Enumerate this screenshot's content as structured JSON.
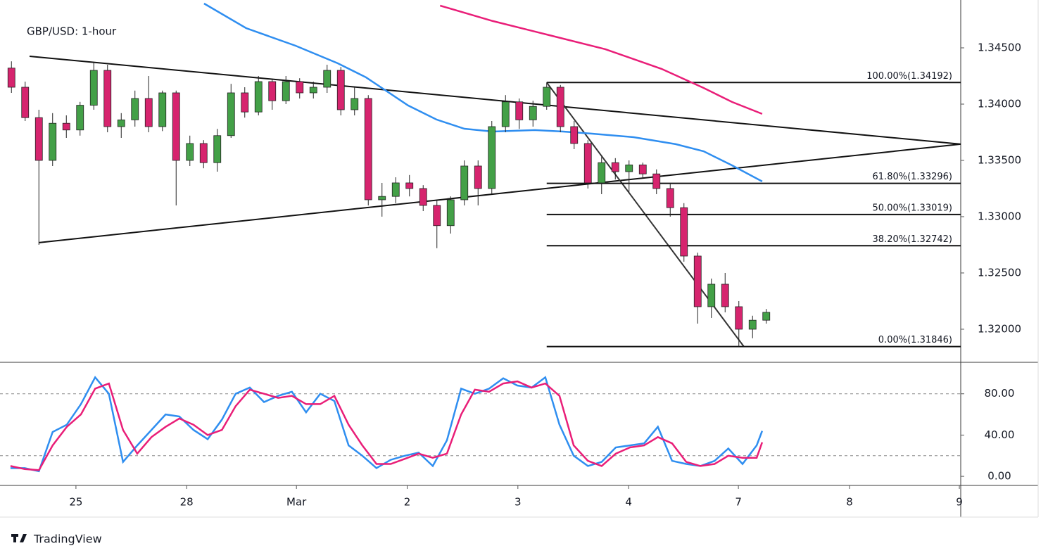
{
  "chart_data": [
    {
      "type": "candlestick",
      "title": "GBP/USD: 1-hour",
      "x": [
        2.5,
        5.5,
        8.5,
        11.5,
        14.5,
        17.5,
        20.5,
        23.5,
        26.5,
        29.5,
        32.5,
        35.5,
        38.5,
        41.5,
        44.5,
        47.5,
        50.5,
        53.5,
        56.5,
        59.5,
        62.5,
        65.5,
        68.5,
        71.5,
        74.5,
        77.5,
        80.5,
        83.5,
        86.5,
        89.5,
        92.5,
        95.5,
        98.5,
        101.5,
        104.5,
        107.5,
        110.5,
        113.5,
        116.5,
        119.5,
        122.5,
        125.5,
        128.5,
        131.5,
        134.5,
        137.5,
        140.5,
        143.5,
        146.5,
        149.5,
        152.5,
        155.5,
        158.5,
        161.5,
        164.5,
        167.5
      ],
      "open": [
        1.3432,
        1.3415,
        1.3388,
        1.335,
        1.3383,
        1.3377,
        1.3399,
        1.343,
        1.338,
        1.3386,
        1.3405,
        1.338,
        1.341,
        1.335,
        1.3365,
        1.3348,
        1.3372,
        1.341,
        1.3393,
        1.342,
        1.3403,
        1.342,
        1.341,
        1.3415,
        1.343,
        1.3395,
        1.3405,
        1.3315,
        1.3318,
        1.333,
        1.3325,
        1.331,
        1.3292,
        1.3315,
        1.3345,
        1.3325,
        1.338,
        1.3402,
        1.3386,
        1.3398,
        1.3415,
        1.338,
        1.3365,
        1.333,
        1.3348,
        1.334,
        1.3346,
        1.3338,
        1.3325,
        1.3308,
        1.3265,
        1.322,
        1.324,
        1.322,
        1.32,
        1.3208
      ],
      "high": [
        1.3438,
        1.342,
        1.3395,
        1.3392,
        1.339,
        1.3402,
        1.3437,
        1.3435,
        1.3392,
        1.3412,
        1.3425,
        1.3412,
        1.3412,
        1.3372,
        1.3368,
        1.3378,
        1.3418,
        1.3415,
        1.3425,
        1.3422,
        1.3425,
        1.3423,
        1.342,
        1.3435,
        1.3433,
        1.3415,
        1.3408,
        1.333,
        1.3335,
        1.3337,
        1.3328,
        1.3315,
        1.3318,
        1.335,
        1.335,
        1.3385,
        1.3408,
        1.3405,
        1.3403,
        1.34192,
        1.3417,
        1.3385,
        1.3368,
        1.3353,
        1.3352,
        1.335,
        1.3348,
        1.3342,
        1.333,
        1.3312,
        1.3268,
        1.3245,
        1.325,
        1.3225,
        1.3212,
        1.3218
      ],
      "low": [
        1.341,
        1.3385,
        1.3275,
        1.3345,
        1.337,
        1.3372,
        1.3395,
        1.3375,
        1.337,
        1.338,
        1.3375,
        1.3376,
        1.331,
        1.3345,
        1.3343,
        1.334,
        1.337,
        1.3388,
        1.339,
        1.3395,
        1.34,
        1.3405,
        1.3405,
        1.341,
        1.339,
        1.339,
        1.331,
        1.33,
        1.3312,
        1.3318,
        1.3305,
        1.3272,
        1.3285,
        1.331,
        1.331,
        1.332,
        1.3375,
        1.3378,
        1.338,
        1.3395,
        1.3375,
        1.336,
        1.3325,
        1.332,
        1.3333,
        1.3322,
        1.3334,
        1.332,
        1.33,
        1.326,
        1.3205,
        1.321,
        1.3215,
        1.31846,
        1.3192,
        1.3205
      ],
      "close": [
        1.3415,
        1.3388,
        1.335,
        1.3383,
        1.3377,
        1.3399,
        1.343,
        1.338,
        1.3386,
        1.3405,
        1.338,
        1.341,
        1.335,
        1.3365,
        1.3348,
        1.3372,
        1.341,
        1.3393,
        1.342,
        1.3403,
        1.342,
        1.341,
        1.3415,
        1.343,
        1.3395,
        1.3405,
        1.3315,
        1.3318,
        1.333,
        1.3325,
        1.331,
        1.3292,
        1.3315,
        1.3345,
        1.3325,
        1.338,
        1.3402,
        1.3386,
        1.3398,
        1.3415,
        1.338,
        1.3365,
        1.333,
        1.3348,
        1.334,
        1.3346,
        1.3338,
        1.3325,
        1.3308,
        1.3265,
        1.322,
        1.324,
        1.322,
        1.32,
        1.3208,
        1.3215
      ],
      "up_color": "#43a047",
      "down_color": "#d6246e",
      "series": [
        {
          "color": "#2f8ef0",
          "x": [
            44.6,
            53.8,
            64.6,
            73.8,
            80,
            89.2,
            95.4,
            101.5,
            107.7,
            116.9,
            123.1,
            129.2,
            138.5,
            147.7,
            153.8,
            160,
            166.6
          ],
          "values": [
            1.34894,
            1.34675,
            1.34519,
            1.34363,
            1.34238,
            1.33988,
            1.33863,
            1.33781,
            1.33756,
            1.33769,
            1.33756,
            1.33738,
            1.33706,
            1.33644,
            1.33581,
            1.33456,
            1.33313
          ]
        },
        {
          "color": "#e91e78",
          "x": [
            96.2,
            107.7,
            120,
            132.3,
            144.6,
            153.8,
            160,
            166.6
          ],
          "values": [
            1.34875,
            1.34738,
            1.34613,
            1.34488,
            1.34313,
            1.34144,
            1.34019,
            1.33913
          ]
        }
      ],
      "trendlines": [
        {
          "color": "#111111",
          "x": [
            6.46,
            210
          ],
          "values": [
            1.34425,
            1.33644
          ]
        },
        {
          "color": "#111111",
          "x": [
            8.5,
            210
          ],
          "values": [
            1.32769,
            1.33644
          ]
        },
        {
          "color": "#333333",
          "x": [
            119.5,
            162.6
          ],
          "values": [
            1.34192,
            1.31846
          ]
        }
      ],
      "fib_x": [
        119.5,
        210
      ],
      "fib_levels": [
        {
          "value": 1.34192,
          "label": "100.00%(1.34192)"
        },
        {
          "value": 1.33296,
          "label": "61.80%(1.33296)"
        },
        {
          "value": 1.33019,
          "label": "50.00%(1.33019)"
        },
        {
          "value": 1.32742,
          "label": "38.20%(1.32742)"
        },
        {
          "value": 1.31846,
          "label": "0.00%(1.31846)"
        }
      ],
      "xlim": [
        0,
        210
      ],
      "ylim": [
        1.31706,
        1.34925
      ],
      "yticks": [
        {
          "value": 1.345,
          "label": "1.34500"
        },
        {
          "value": 1.34,
          "label": "1.34000"
        },
        {
          "value": 1.335,
          "label": "1.33500"
        },
        {
          "value": 1.33,
          "label": "1.33000"
        },
        {
          "value": 1.325,
          "label": "1.32500"
        },
        {
          "value": 1.32,
          "label": "1.32000"
        }
      ],
      "grid": false
    },
    {
      "type": "line",
      "x": [
        2.3,
        5.4,
        8.5,
        11.5,
        14.6,
        17.7,
        20.8,
        23.8,
        26.9,
        30,
        33.1,
        36.2,
        39.2,
        42.3,
        45.4,
        48.5,
        51.5,
        54.6,
        57.7,
        60.8,
        63.8,
        66.9,
        70,
        73.1,
        76.2,
        79.2,
        82.3,
        85.4,
        88.5,
        91.5,
        94.6,
        97.7,
        100.8,
        103.8,
        106.9,
        110,
        113.1,
        116.2,
        119.2,
        122.3,
        125.4,
        128.5,
        131.5,
        134.6,
        137.7,
        140.8,
        143.8,
        146.9,
        150,
        153.1,
        156.2,
        159.2,
        162.3,
        165.4,
        166.6
      ],
      "series": [
        {
          "color": "#2f8ef0",
          "values": [
            8,
            8,
            5,
            43,
            50,
            70,
            96,
            80,
            14,
            30,
            45,
            60,
            58,
            45,
            36,
            55,
            80,
            86,
            72,
            78,
            82,
            62,
            80,
            73,
            30,
            20,
            8,
            16,
            20,
            23,
            10,
            35,
            85,
            80,
            85,
            95,
            88,
            86,
            96,
            50,
            20,
            10,
            14,
            28,
            30,
            32,
            48,
            15,
            12,
            10,
            15,
            27,
            12,
            30,
            44
          ]
        },
        {
          "color": "#e91e78",
          "values": [
            10,
            7,
            6,
            30,
            48,
            60,
            85,
            90,
            45,
            22,
            38,
            48,
            56,
            50,
            40,
            45,
            68,
            84,
            80,
            76,
            78,
            70,
            70,
            78,
            50,
            30,
            12,
            12,
            17,
            22,
            18,
            22,
            60,
            84,
            82,
            90,
            92,
            86,
            90,
            78,
            30,
            15,
            10,
            22,
            28,
            30,
            38,
            32,
            14,
            10,
            12,
            20,
            18,
            18,
            33
          ]
        }
      ],
      "bands": [
        20,
        80
      ],
      "xlim": [
        0,
        210
      ],
      "ylim": [
        -8.8,
        110.5
      ],
      "yticks": [
        {
          "value": 80,
          "label": "80.00"
        },
        {
          "value": 40,
          "label": "40.00"
        },
        {
          "value": 0,
          "label": "0.00"
        }
      ],
      "xticks": [
        {
          "value": 16.6,
          "label": "25"
        },
        {
          "value": 40.8,
          "label": "28"
        },
        {
          "value": 64.8,
          "label": "Mar"
        },
        {
          "value": 89,
          "label": "2"
        },
        {
          "value": 113.2,
          "label": "3"
        },
        {
          "value": 137.4,
          "label": "4"
        },
        {
          "value": 161.4,
          "label": "7"
        },
        {
          "value": 185.7,
          "label": "8"
        },
        {
          "value": 209.7,
          "label": "9"
        }
      ]
    }
  ],
  "footer": {
    "brand": "TradingView"
  }
}
